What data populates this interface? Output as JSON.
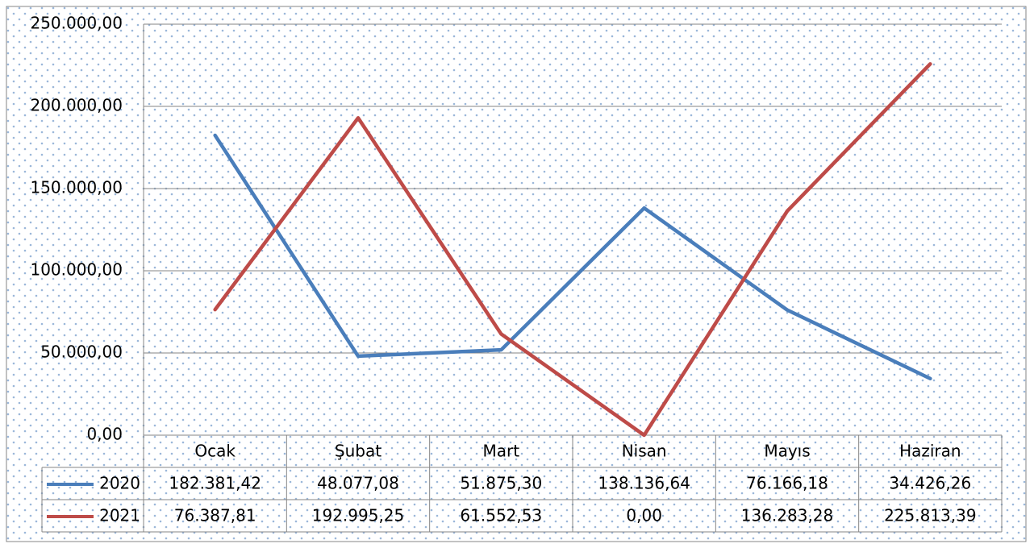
{
  "chart_data": {
    "type": "line",
    "categories": [
      "Ocak",
      "Şubat",
      "Mart",
      "Nisan",
      "Mayıs",
      "Haziran"
    ],
    "series": [
      {
        "name": "2020",
        "color": "#4a7ebb",
        "values": [
          182381.42,
          48077.08,
          51875.3,
          138136.64,
          76166.18,
          34426.26
        ],
        "value_labels": [
          "182.381,42",
          "48.077,08",
          "51.875,30",
          "138.136,64",
          "76.166,18",
          "34.426,26"
        ]
      },
      {
        "name": "2021",
        "color": "#be4b48",
        "values": [
          76387.81,
          192995.25,
          61552.53,
          0,
          136283.28,
          225813.39
        ],
        "value_labels": [
          "76.387,81",
          "192.995,25",
          "61.552,53",
          "0,00",
          "136.283,28",
          "225.813,39"
        ]
      }
    ],
    "ylim": [
      0,
      250000
    ],
    "yticks": [
      {
        "value": 0,
        "label": "0,00"
      },
      {
        "value": 50000,
        "label": "50.000,00"
      },
      {
        "value": 100000,
        "label": "100.000,00"
      },
      {
        "value": 150000,
        "label": "150.000,00"
      },
      {
        "value": 200000,
        "label": "200.000,00"
      },
      {
        "value": 250000,
        "label": "250.000,00"
      }
    ],
    "grid": true,
    "data_table": true
  }
}
